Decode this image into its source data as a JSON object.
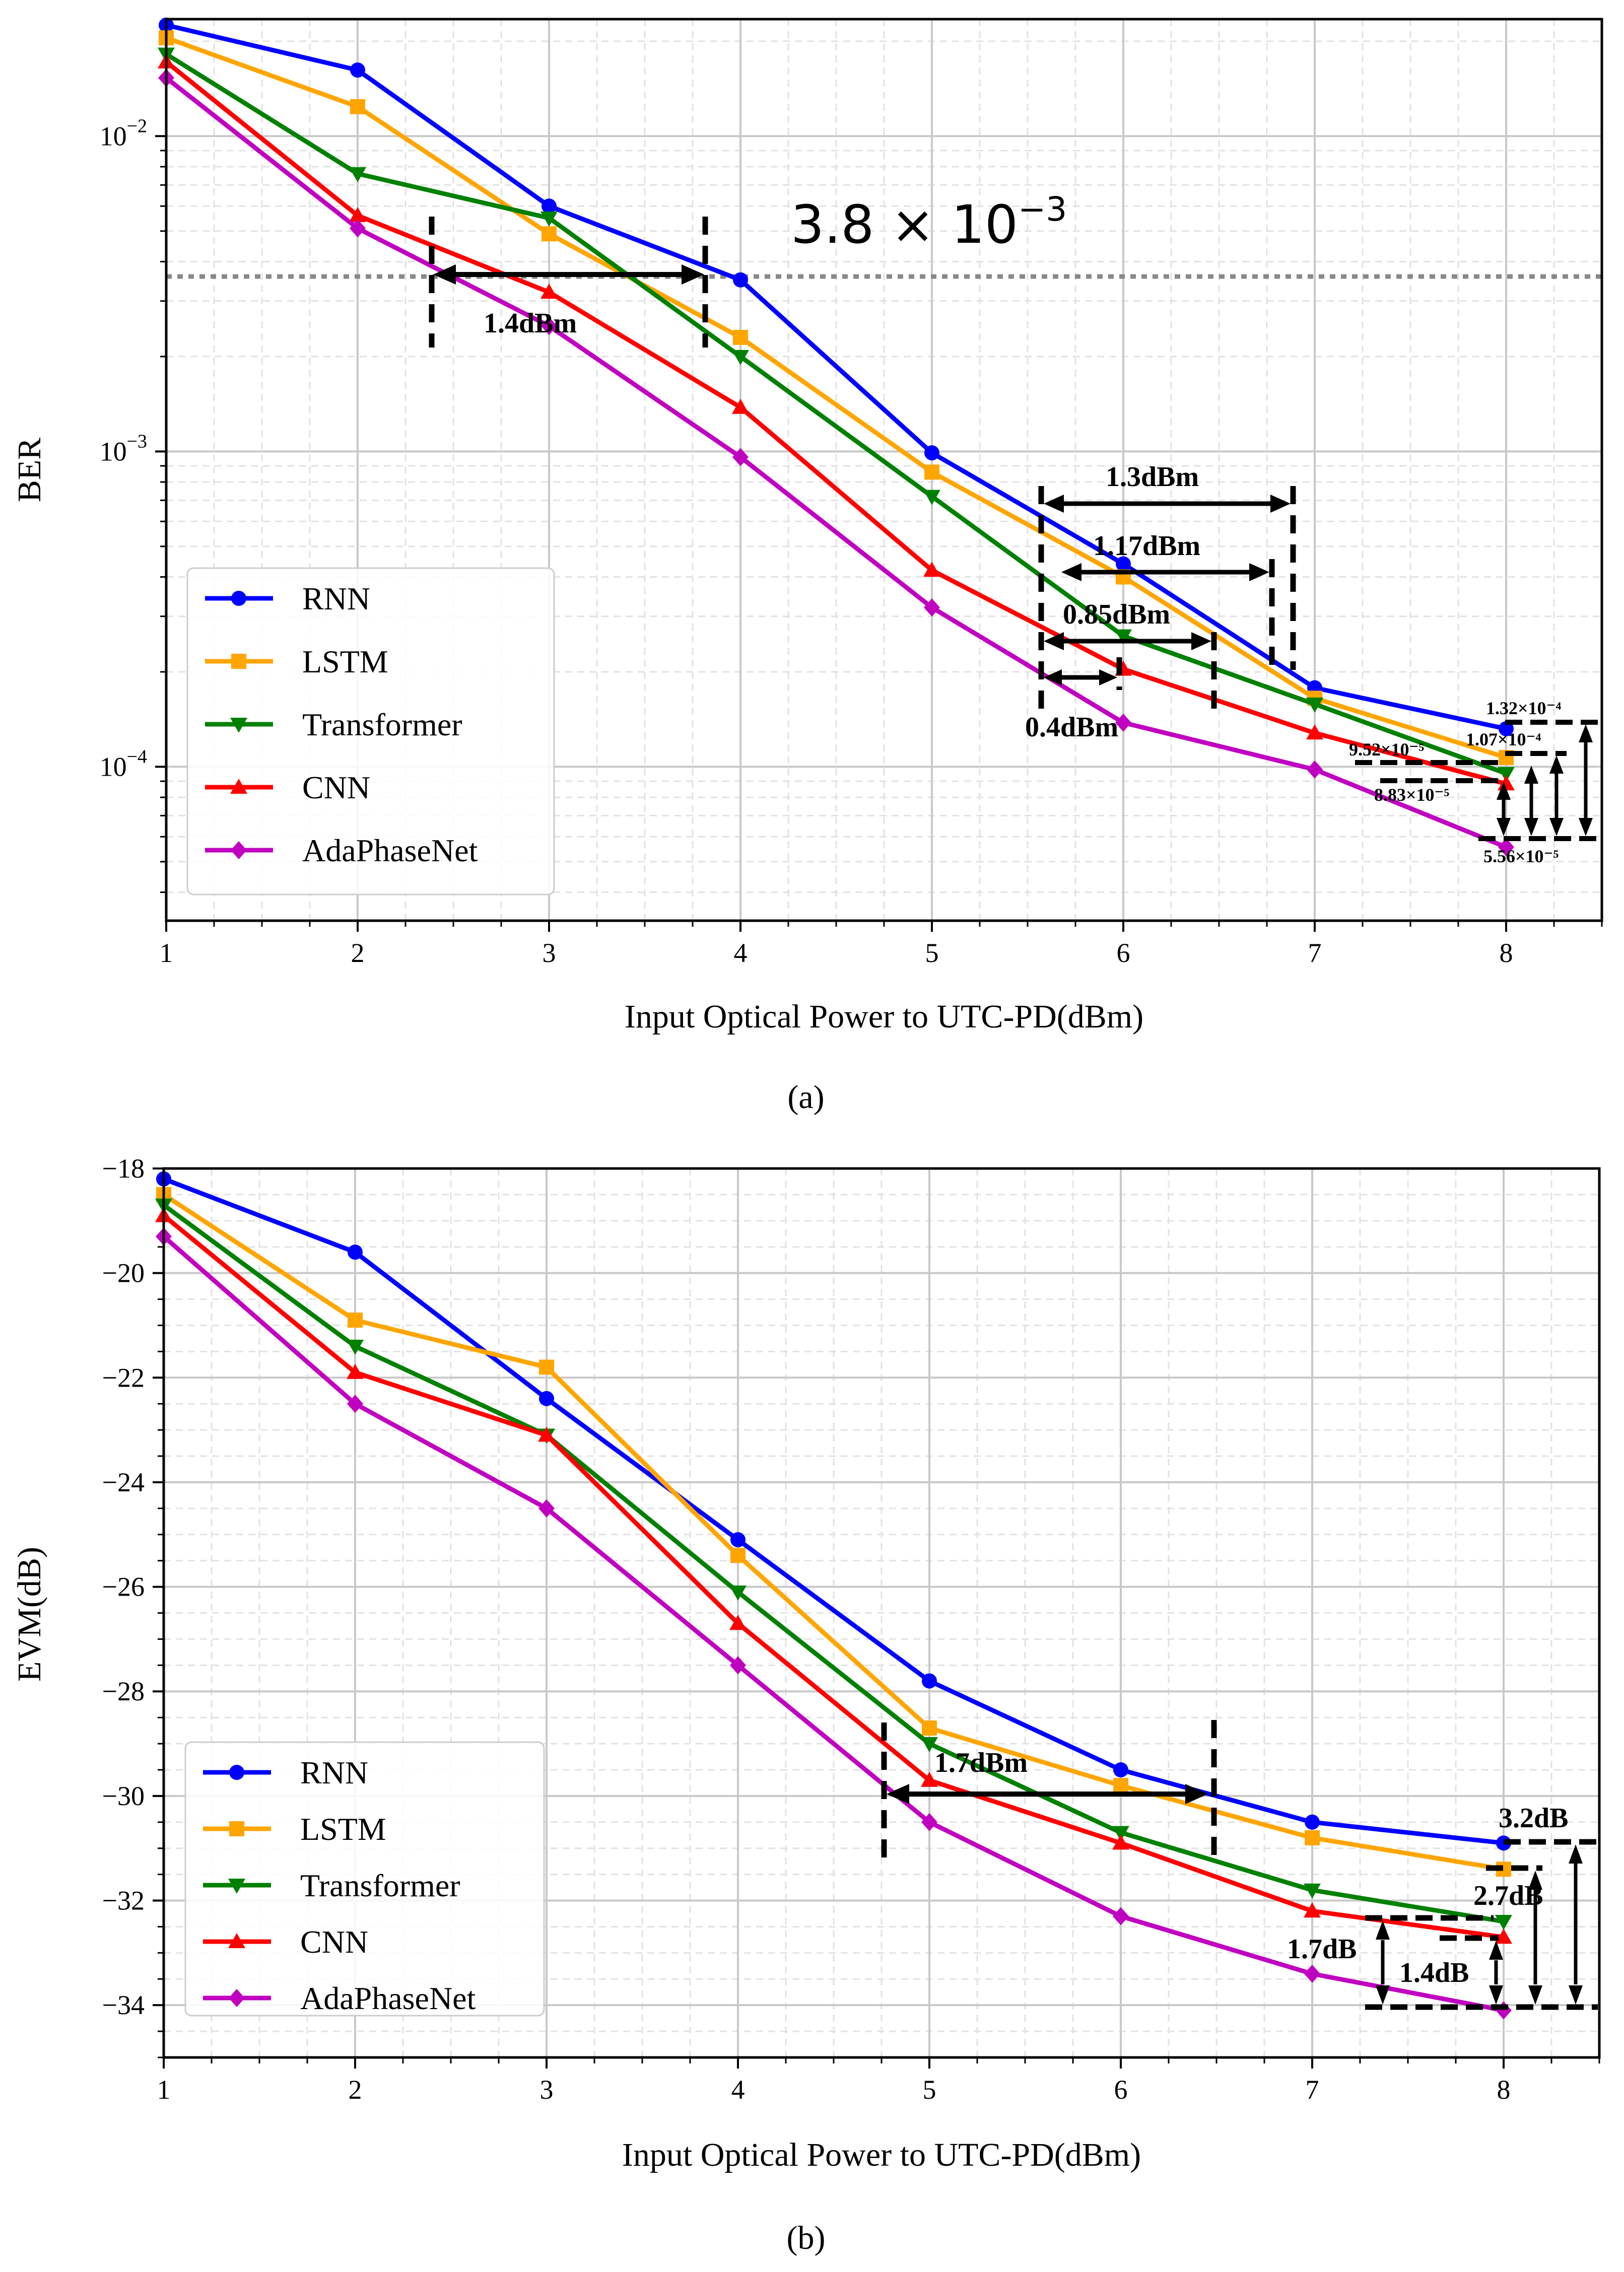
{
  "chart_data": [
    {
      "id": "a",
      "type": "line",
      "subplot_label": "(a)",
      "xlabel": "Input Optical Power to UTC-PD(dBm)",
      "ylabel": "BER",
      "yscale": "log",
      "xlim": [
        1,
        8.5
      ],
      "ylim": [
        3.25e-05,
        0.0235
      ],
      "x": [
        1,
        2,
        3,
        4,
        5,
        6,
        7,
        8
      ],
      "x_ticks": [
        "1",
        "2",
        "3",
        "4",
        "5",
        "6",
        "7",
        "8"
      ],
      "y_ticks": [
        {
          "value": 0.01,
          "base": "10",
          "exp": "−2"
        },
        {
          "value": 0.001,
          "base": "10",
          "exp": "−3"
        },
        {
          "value": 0.0001,
          "base": "10",
          "exp": "−4"
        }
      ],
      "series": [
        {
          "name": "RNN",
          "color": "#0000ff",
          "marker": "circle",
          "values": [
            0.0225,
            0.0162,
            0.006,
            0.0035,
            0.00099,
            0.00044,
            0.000178,
            0.000132
          ]
        },
        {
          "name": "LSTM",
          "color": "#ffa500",
          "marker": "square",
          "values": [
            0.0205,
            0.0124,
            0.0049,
            0.0023,
            0.00086,
            0.0004,
            0.000165,
            0.000107
          ]
        },
        {
          "name": "Transformer",
          "color": "#008000",
          "marker": "triangle-down",
          "values": [
            0.0182,
            0.0076,
            0.0055,
            0.002,
            0.00072,
            0.00026,
            0.000158,
            9.52e-05
          ]
        },
        {
          "name": "CNN",
          "color": "#ff0000",
          "marker": "triangle-up",
          "values": [
            0.0172,
            0.0056,
            0.0032,
            0.00138,
            0.00042,
            0.000204,
            0.000128,
            8.83e-05
          ]
        },
        {
          "name": "AdaPhaseNet",
          "color": "#c000c0",
          "marker": "diamond",
          "values": [
            0.0153,
            0.0051,
            0.0025,
            0.00096,
            0.00032,
            0.000138,
            9.8e-05,
            5.56e-05
          ]
        }
      ],
      "threshold": {
        "value": 0.0038,
        "label_base": "3.8 × 10",
        "label_exp": "−3"
      },
      "annotations": {
        "gap_main": "1.4dBm",
        "gaps": [
          "1.3dBm",
          "1.17dBm",
          "0.85dBm",
          "0.4dBm"
        ],
        "end_values": [
          "1.32×10⁻⁴",
          "1.07×10⁻⁴",
          "9.52×10⁻⁵",
          "8.83×10⁻⁵",
          "5.56×10⁻⁵"
        ]
      }
    },
    {
      "id": "b",
      "type": "line",
      "subplot_label": "(b)",
      "xlabel": "Input Optical Power to UTC-PD(dBm)",
      "ylabel": "EVM(dB)",
      "yscale": "linear",
      "xlim": [
        1,
        8.5
      ],
      "ylim": [
        -35,
        -18
      ],
      "x": [
        1,
        2,
        3,
        4,
        5,
        6,
        7,
        8
      ],
      "x_ticks": [
        "1",
        "2",
        "3",
        "4",
        "5",
        "6",
        "7",
        "8"
      ],
      "y_ticks": [
        {
          "value": -18,
          "label": "−18"
        },
        {
          "value": -20,
          "label": "−20"
        },
        {
          "value": -22,
          "label": "−22"
        },
        {
          "value": -24,
          "label": "−24"
        },
        {
          "value": -26,
          "label": "−26"
        },
        {
          "value": -28,
          "label": "−28"
        },
        {
          "value": -30,
          "label": "−30"
        },
        {
          "value": -32,
          "label": "−32"
        },
        {
          "value": -34,
          "label": "−34"
        }
      ],
      "series": [
        {
          "name": "RNN",
          "color": "#0000ff",
          "marker": "circle",
          "values": [
            -18.2,
            -19.6,
            -22.4,
            -25.1,
            -27.8,
            -29.5,
            -30.5,
            -30.9
          ]
        },
        {
          "name": "LSTM",
          "color": "#ffa500",
          "marker": "square",
          "values": [
            -18.5,
            -20.9,
            -21.8,
            -25.4,
            -28.7,
            -29.8,
            -30.8,
            -31.4
          ]
        },
        {
          "name": "Transformer",
          "color": "#008000",
          "marker": "triangle-down",
          "values": [
            -18.7,
            -21.4,
            -23.1,
            -26.1,
            -29.0,
            -30.7,
            -31.8,
            -32.4
          ]
        },
        {
          "name": "CNN",
          "color": "#ff0000",
          "marker": "triangle-up",
          "values": [
            -18.9,
            -21.9,
            -23.1,
            -26.7,
            -29.7,
            -30.9,
            -32.2,
            -32.7
          ]
        },
        {
          "name": "AdaPhaseNet",
          "color": "#c000c0",
          "marker": "diamond",
          "values": [
            -19.3,
            -22.5,
            -24.5,
            -27.5,
            -30.5,
            -32.3,
            -33.4,
            -34.1
          ]
        }
      ],
      "annotations": {
        "gap_main": "1.7dBm",
        "gains": [
          "3.2dB",
          "2.7dB",
          "1.7dB",
          "1.4dB"
        ]
      }
    }
  ]
}
